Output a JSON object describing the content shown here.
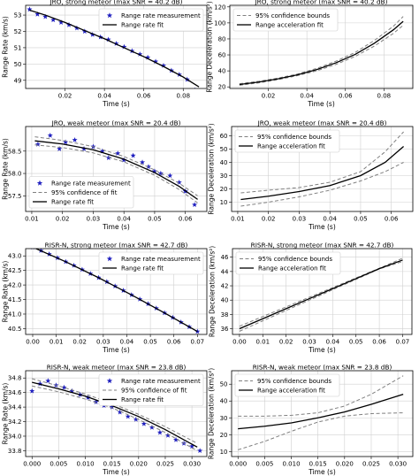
{
  "chart_data": [
    {
      "type": "scatter",
      "title": "JRO, strong meteor (max SNR = 40.2 dB)",
      "xlabel": "Time (s)",
      "ylabel": "Range Rate (km/s)",
      "xlim": [
        0.0,
        0.092
      ],
      "ylim": [
        48.5,
        53.6
      ],
      "xticks": [
        0.02,
        0.04,
        0.06,
        0.08
      ],
      "yticks": [
        49,
        50,
        51,
        52,
        53
      ],
      "xtick_labels": [
        "0.02",
        "0.04",
        "0.06",
        "0.08"
      ],
      "ytick_labels": [
        "49",
        "50",
        "51",
        "52",
        "53"
      ],
      "grid": true,
      "legend": "top-right",
      "series": [
        {
          "name": "Range rate measurement",
          "kind": "markers",
          "color": "#1f1fbf",
          "x": [
            0.002,
            0.006,
            0.01,
            0.014,
            0.018,
            0.022,
            0.026,
            0.03,
            0.034,
            0.038,
            0.042,
            0.046,
            0.05,
            0.054,
            0.058,
            0.062,
            0.066,
            0.07,
            0.074,
            0.078,
            0.082,
            0.086
          ],
          "y": [
            53.35,
            53.05,
            52.9,
            52.7,
            52.55,
            52.4,
            52.2,
            52.0,
            51.8,
            51.65,
            51.5,
            51.25,
            51.05,
            50.8,
            50.6,
            50.4,
            50.15,
            49.9,
            49.6,
            49.35,
            49.05,
            48.4
          ]
        },
        {
          "name": "Range rate fit",
          "kind": "line",
          "color": "#000000",
          "x": [
            0.002,
            0.01,
            0.02,
            0.03,
            0.04,
            0.05,
            0.06,
            0.07,
            0.08,
            0.088
          ],
          "y": [
            53.3,
            53.0,
            52.55,
            52.05,
            51.55,
            51.0,
            50.45,
            49.85,
            49.2,
            48.6
          ]
        }
      ]
    },
    {
      "type": "line",
      "title": "JRO, strong meteor (max SNR = 40.2 dB)",
      "xlabel": "Time (s)",
      "ylabel": "Range Deceleration (km/s²)",
      "xlim": [
        0.0,
        0.095
      ],
      "ylim": [
        18,
        122
      ],
      "xticks": [
        0.02,
        0.04,
        0.06,
        0.08
      ],
      "yticks": [
        20,
        40,
        60,
        80,
        100,
        120
      ],
      "xtick_labels": [
        "0.02",
        "0.04",
        "0.06",
        "0.08"
      ],
      "ytick_labels": [
        "20",
        "40",
        "60",
        "80",
        "100",
        "120"
      ],
      "grid": true,
      "legend": "top-left",
      "series": [
        {
          "name": "95% confidence bounds",
          "kind": "dashed",
          "color": "#808080",
          "x": [
            0.005,
            0.015,
            0.025,
            0.035,
            0.045,
            0.055,
            0.065,
            0.075,
            0.085,
            0.09
          ],
          "y": [
            24,
            27,
            31,
            36,
            43,
            52,
            63,
            78,
            96,
            108
          ]
        },
        {
          "kind": "dashed",
          "color": "#808080",
          "x": [
            0.005,
            0.015,
            0.025,
            0.035,
            0.045,
            0.055,
            0.065,
            0.075,
            0.085,
            0.09
          ],
          "y": [
            22,
            25,
            29,
            34,
            40,
            48,
            58,
            71,
            87,
            97
          ]
        },
        {
          "name": "Range acceleration fit",
          "kind": "line",
          "color": "#000000",
          "x": [
            0.005,
            0.015,
            0.025,
            0.035,
            0.045,
            0.055,
            0.065,
            0.075,
            0.085,
            0.09
          ],
          "y": [
            23,
            26,
            30,
            35,
            41.5,
            50,
            60.5,
            74.5,
            91.5,
            102
          ]
        }
      ]
    },
    {
      "type": "scatter",
      "title": "JRO, weak meteor (max SNR = 20.4 dB)",
      "xlabel": "Time (s)",
      "ylabel": "Range Rate (km/s)",
      "xlim": [
        0.008,
        0.067
      ],
      "ylim": [
        57.15,
        59.05
      ],
      "xticks": [
        0.01,
        0.02,
        0.03,
        0.04,
        0.05,
        0.06
      ],
      "yticks": [
        57.5,
        58.0,
        58.5
      ],
      "xtick_labels": [
        "0.01",
        "0.02",
        "0.03",
        "0.04",
        "0.05",
        "0.06"
      ],
      "ytick_labels": [
        "57.5",
        "58.0",
        "58.5"
      ],
      "grid": true,
      "legend": "bottom-left",
      "series": [
        {
          "name": "Range rate measurement",
          "kind": "markers",
          "color": "#1f1fbf",
          "x": [
            0.012,
            0.016,
            0.019,
            0.021,
            0.024,
            0.027,
            0.03,
            0.033,
            0.035,
            0.038,
            0.04,
            0.043,
            0.046,
            0.048,
            0.05,
            0.052,
            0.055,
            0.058,
            0.06,
            0.063
          ],
          "y": [
            58.65,
            58.85,
            58.55,
            58.7,
            58.75,
            58.55,
            58.6,
            58.5,
            58.35,
            58.45,
            58.3,
            58.4,
            58.25,
            58.15,
            58.05,
            58.0,
            57.95,
            57.8,
            57.6,
            57.3
          ]
        },
        {
          "name": "95% confidence of fit",
          "kind": "dashed",
          "color": "#808080",
          "x": [
            0.011,
            0.02,
            0.03,
            0.04,
            0.05,
            0.058,
            0.064
          ],
          "y": [
            58.82,
            58.74,
            58.6,
            58.38,
            58.08,
            57.78,
            57.5
          ]
        },
        {
          "kind": "dashed",
          "color": "#808080",
          "x": [
            0.011,
            0.02,
            0.03,
            0.04,
            0.05,
            0.058,
            0.064
          ],
          "y": [
            58.64,
            58.58,
            58.46,
            58.26,
            57.96,
            57.64,
            57.34
          ]
        },
        {
          "name": "Range rate fit",
          "kind": "line",
          "color": "#000000",
          "x": [
            0.011,
            0.02,
            0.03,
            0.04,
            0.05,
            0.058,
            0.064
          ],
          "y": [
            58.73,
            58.66,
            58.53,
            58.32,
            58.02,
            57.71,
            57.42
          ]
        }
      ]
    },
    {
      "type": "line",
      "title": "JRO, weak meteor (max SNR = 20.4 dB)",
      "xlabel": "Time (s)",
      "ylabel": "Range Deceleration (km/s²)",
      "xlim": [
        0.008,
        0.067
      ],
      "ylim": [
        3,
        67
      ],
      "xticks": [
        0.01,
        0.02,
        0.03,
        0.04,
        0.05,
        0.06
      ],
      "yticks": [
        10,
        20,
        30,
        40,
        50,
        60
      ],
      "xtick_labels": [
        "0.01",
        "0.02",
        "0.03",
        "0.04",
        "0.05",
        "0.06"
      ],
      "ytick_labels": [
        "10",
        "20",
        "30",
        "40",
        "50",
        "60"
      ],
      "grid": true,
      "legend": "top-left",
      "series": [
        {
          "name": "95% confidence bounds",
          "kind": "dashed",
          "color": "#808080",
          "x": [
            0.011,
            0.02,
            0.03,
            0.04,
            0.05,
            0.058,
            0.064
          ],
          "y": [
            17,
            19,
            21,
            25,
            33,
            48,
            63
          ]
        },
        {
          "kind": "dashed",
          "color": "#808080",
          "x": [
            0.011,
            0.02,
            0.03,
            0.04,
            0.05,
            0.058,
            0.064
          ],
          "y": [
            7,
            10,
            14,
            19,
            26,
            33,
            40
          ]
        },
        {
          "name": "Range acceleration fit",
          "kind": "line",
          "color": "#000000",
          "x": [
            0.011,
            0.02,
            0.03,
            0.04,
            0.05,
            0.058,
            0.064
          ],
          "y": [
            12,
            14.5,
            18,
            22.5,
            30,
            40,
            52
          ]
        }
      ]
    },
    {
      "type": "scatter",
      "title": "RISR-N, strong meteor (max SNR = 42.7 dB)",
      "xlabel": "Time (s)",
      "ylabel": "Range Rate (km/s)",
      "xlim": [
        -0.003,
        0.074
      ],
      "ylim": [
        40.3,
        43.25
      ],
      "xticks": [
        0.0,
        0.01,
        0.02,
        0.03,
        0.04,
        0.05,
        0.06,
        0.07
      ],
      "yticks": [
        40.5,
        41.0,
        41.5,
        42.0,
        42.5,
        43.0
      ],
      "xtick_labels": [
        "0.00",
        "0.01",
        "0.02",
        "0.03",
        "0.04",
        "0.05",
        "0.06",
        "0.07"
      ],
      "ytick_labels": [
        "40.5",
        "41.0",
        "41.5",
        "42.0",
        "42.5",
        "43.0"
      ],
      "grid": true,
      "legend": "top-right",
      "series": [
        {
          "name": "Range rate measurement",
          "kind": "markers",
          "color": "#1f1fbf",
          "x": [
            0.0,
            0.0035,
            0.007,
            0.0105,
            0.014,
            0.0175,
            0.021,
            0.0245,
            0.028,
            0.0315,
            0.035,
            0.0385,
            0.042,
            0.0455,
            0.049,
            0.0525,
            0.056,
            0.0595,
            0.063,
            0.0665,
            0.07
          ],
          "y": [
            43.3,
            43.18,
            43.06,
            42.93,
            42.8,
            42.67,
            42.53,
            42.39,
            42.25,
            42.11,
            41.96,
            41.81,
            41.66,
            41.51,
            41.35,
            41.2,
            41.04,
            40.88,
            40.72,
            40.56,
            40.4
          ]
        },
        {
          "name": "Range rate fit",
          "kind": "line",
          "color": "#000000",
          "x": [
            0.0,
            0.014,
            0.028,
            0.042,
            0.056,
            0.07
          ],
          "y": [
            43.3,
            42.8,
            42.25,
            41.66,
            41.04,
            40.4
          ]
        }
      ]
    },
    {
      "type": "line",
      "title": "RISR-N, strong meteor (max SNR = 42.7 dB)",
      "xlabel": "Time (s)",
      "ylabel": "Range Deceleration (km/s²)",
      "xlim": [
        -0.003,
        0.074
      ],
      "ylim": [
        35.2,
        47.2
      ],
      "xticks": [
        0.0,
        0.01,
        0.02,
        0.03,
        0.04,
        0.05,
        0.06,
        0.07
      ],
      "yticks": [
        36,
        38,
        40,
        42,
        44,
        46
      ],
      "xtick_labels": [
        "0.00",
        "0.01",
        "0.02",
        "0.03",
        "0.04",
        "0.05",
        "0.06",
        "0.07"
      ],
      "ytick_labels": [
        "36",
        "38",
        "40",
        "42",
        "44",
        "46"
      ],
      "grid": true,
      "legend": "top-left",
      "series": [
        {
          "name": "95% confidence bounds",
          "kind": "dashed",
          "color": "#808080",
          "x": [
            0.0,
            0.01,
            0.02,
            0.03,
            0.04,
            0.05,
            0.06,
            0.07
          ],
          "y": [
            36.35,
            37.7,
            39.05,
            40.4,
            41.75,
            43.1,
            44.45,
            45.85
          ]
        },
        {
          "kind": "dashed",
          "color": "#808080",
          "x": [
            0.0,
            0.01,
            0.02,
            0.03,
            0.04,
            0.05,
            0.06,
            0.07
          ],
          "y": [
            35.65,
            37.1,
            38.55,
            40.0,
            41.45,
            42.9,
            44.35,
            45.4
          ]
        },
        {
          "name": "Range acceleration fit",
          "kind": "line",
          "color": "#000000",
          "x": [
            0.0,
            0.01,
            0.02,
            0.03,
            0.04,
            0.05,
            0.06,
            0.07
          ],
          "y": [
            36.0,
            37.4,
            38.8,
            40.2,
            41.6,
            43.0,
            44.4,
            45.6
          ]
        }
      ]
    },
    {
      "type": "scatter",
      "title": "RISR-N, weak meteor (max SNR = 23.8 dB)",
      "xlabel": "Time (s)",
      "ylabel": "Range Rate (km/s)",
      "xlim": [
        -0.0012,
        0.0328
      ],
      "ylim": [
        33.72,
        34.9
      ],
      "xticks": [
        0.0,
        0.005,
        0.01,
        0.015,
        0.02,
        0.025,
        0.03
      ],
      "yticks": [
        33.8,
        34.0,
        34.2,
        34.4,
        34.6,
        34.8
      ],
      "xtick_labels": [
        "0.000",
        "0.005",
        "0.010",
        "0.015",
        "0.020",
        "0.025",
        "0.030"
      ],
      "ytick_labels": [
        "33.8",
        "34.0",
        "34.2",
        "34.4",
        "34.6",
        "34.8"
      ],
      "grid": true,
      "legend": "top-right",
      "series": [
        {
          "name": "Range rate measurement",
          "kind": "markers",
          "color": "#1f1fbf",
          "x": [
            0.0,
            0.0015,
            0.003,
            0.0045,
            0.006,
            0.0075,
            0.009,
            0.0105,
            0.012,
            0.0135,
            0.015,
            0.0165,
            0.018,
            0.0195,
            0.021,
            0.0225,
            0.024,
            0.0255,
            0.027,
            0.0285,
            0.03,
            0.0315
          ],
          "y": [
            34.62,
            34.72,
            34.76,
            34.7,
            34.67,
            34.62,
            34.57,
            34.53,
            34.47,
            34.42,
            34.4,
            34.33,
            34.27,
            34.23,
            34.17,
            34.12,
            34.05,
            34.01,
            33.95,
            33.9,
            33.86,
            33.8
          ]
        },
        {
          "name": "95% confidence of fit",
          "kind": "dashed",
          "color": "#808080",
          "x": [
            0.0,
            0.005,
            0.01,
            0.015,
            0.02,
            0.025,
            0.03,
            0.031
          ],
          "y": [
            34.79,
            34.69,
            34.58,
            34.45,
            34.3,
            34.13,
            33.94,
            33.9
          ]
        },
        {
          "kind": "dashed",
          "color": "#808080",
          "x": [
            0.0,
            0.005,
            0.01,
            0.015,
            0.02,
            0.025,
            0.03,
            0.031
          ],
          "y": [
            34.69,
            34.61,
            34.51,
            34.39,
            34.23,
            34.05,
            33.84,
            33.8
          ]
        },
        {
          "name": "Range rate fit",
          "kind": "line",
          "color": "#000000",
          "x": [
            0.0,
            0.005,
            0.01,
            0.015,
            0.02,
            0.025,
            0.03,
            0.031
          ],
          "y": [
            34.74,
            34.65,
            34.55,
            34.42,
            34.27,
            34.09,
            33.89,
            33.85
          ]
        }
      ]
    },
    {
      "type": "line",
      "title": "RISR-N, weak meteor (max SNR = 23.8 dB)",
      "xlabel": "Time (s)",
      "ylabel": "Range Deceleration (km/s²)",
      "xlim": [
        -0.0012,
        0.0328
      ],
      "ylim": [
        7,
        58
      ],
      "xticks": [
        0.0,
        0.005,
        0.01,
        0.015,
        0.02,
        0.025,
        0.03
      ],
      "yticks": [
        10,
        20,
        30,
        40,
        50
      ],
      "xtick_labels": [
        "0.000",
        "0.005",
        "0.010",
        "0.015",
        "0.020",
        "0.025",
        "0.030"
      ],
      "ytick_labels": [
        "10",
        "20",
        "30",
        "40",
        "50"
      ],
      "grid": true,
      "legend": "top-left",
      "series": [
        {
          "name": "95% confidence bounds",
          "kind": "dashed",
          "color": "#808080",
          "x": [
            0.0,
            0.005,
            0.01,
            0.015,
            0.02,
            0.025,
            0.031
          ],
          "y": [
            31,
            31,
            31.5,
            33,
            37,
            44,
            55
          ]
        },
        {
          "kind": "dashed",
          "color": "#808080",
          "x": [
            0.0,
            0.005,
            0.01,
            0.015,
            0.02,
            0.025,
            0.031
          ],
          "y": [
            11,
            16,
            22,
            27.5,
            31,
            32.5,
            33
          ]
        },
        {
          "name": "Range acceleration fit",
          "kind": "line",
          "color": "#000000",
          "x": [
            0.0,
            0.005,
            0.01,
            0.015,
            0.02,
            0.025,
            0.031
          ],
          "y": [
            23.5,
            25,
            27,
            30,
            33.5,
            38,
            44
          ]
        }
      ]
    }
  ]
}
